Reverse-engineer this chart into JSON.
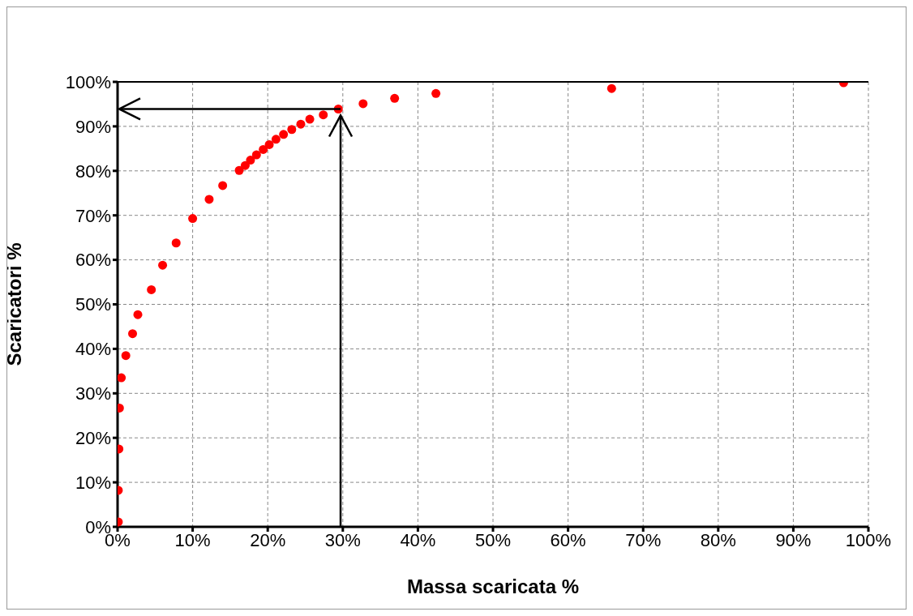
{
  "chart_data": {
    "type": "scatter",
    "xlabel": "Massa scaricata %",
    "ylabel": "Scaricatori %",
    "x": [
      0.1,
      0.1,
      0.18,
      0.25,
      0.5,
      1.1,
      2.0,
      2.7,
      4.5,
      6.0,
      7.8,
      10.0,
      12.2,
      14.0,
      16.2,
      17.0,
      17.7,
      18.5,
      19.4,
      20.2,
      21.1,
      22.1,
      23.2,
      24.4,
      25.6,
      27.4,
      29.4,
      32.7,
      36.9,
      42.4,
      65.8,
      96.7
    ],
    "series": [
      {
        "color": "#ff0000",
        "values": [
          1.1,
          8.2,
          17.5,
          26.7,
          33.5,
          38.5,
          43.4,
          47.7,
          53.3,
          58.8,
          63.8,
          69.3,
          73.6,
          76.7,
          80.1,
          81.2,
          82.4,
          83.6,
          84.8,
          85.9,
          87.1,
          88.2,
          89.3,
          90.5,
          91.6,
          92.6,
          93.9,
          95.1,
          96.3,
          97.4,
          98.5,
          99.8
        ]
      }
    ],
    "xlim": [
      0,
      100
    ],
    "ylim": [
      0,
      100
    ],
    "xticks": [
      {
        "value": 0,
        "label": "0%"
      },
      {
        "value": 10,
        "label": "10%"
      },
      {
        "value": 20,
        "label": "20%"
      },
      {
        "value": 30,
        "label": "30%"
      },
      {
        "value": 40,
        "label": "40%"
      },
      {
        "value": 50,
        "label": "50%"
      },
      {
        "value": 60,
        "label": "60%"
      },
      {
        "value": 70,
        "label": "70%"
      },
      {
        "value": 80,
        "label": "80%"
      },
      {
        "value": 90,
        "label": "90%"
      },
      {
        "value": 100,
        "label": "100%"
      }
    ],
    "yticks": [
      {
        "value": 0,
        "label": "0%"
      },
      {
        "value": 10,
        "label": "10%"
      },
      {
        "value": 20,
        "label": "20%"
      },
      {
        "value": 30,
        "label": "30%"
      },
      {
        "value": 40,
        "label": "40%"
      },
      {
        "value": 50,
        "label": "50%"
      },
      {
        "value": 60,
        "label": "60%"
      },
      {
        "value": 70,
        "label": "70%"
      },
      {
        "value": 80,
        "label": "80%"
      },
      {
        "value": 90,
        "label": "90%"
      },
      {
        "value": 100,
        "label": "100%"
      }
    ],
    "grid": true,
    "marker": "circle",
    "legend": false,
    "ref_lines": [
      {
        "axis": "x",
        "value": 29.7,
        "color": "#000000"
      },
      {
        "axis": "y",
        "value": 93.9,
        "color": "#000000"
      }
    ]
  }
}
